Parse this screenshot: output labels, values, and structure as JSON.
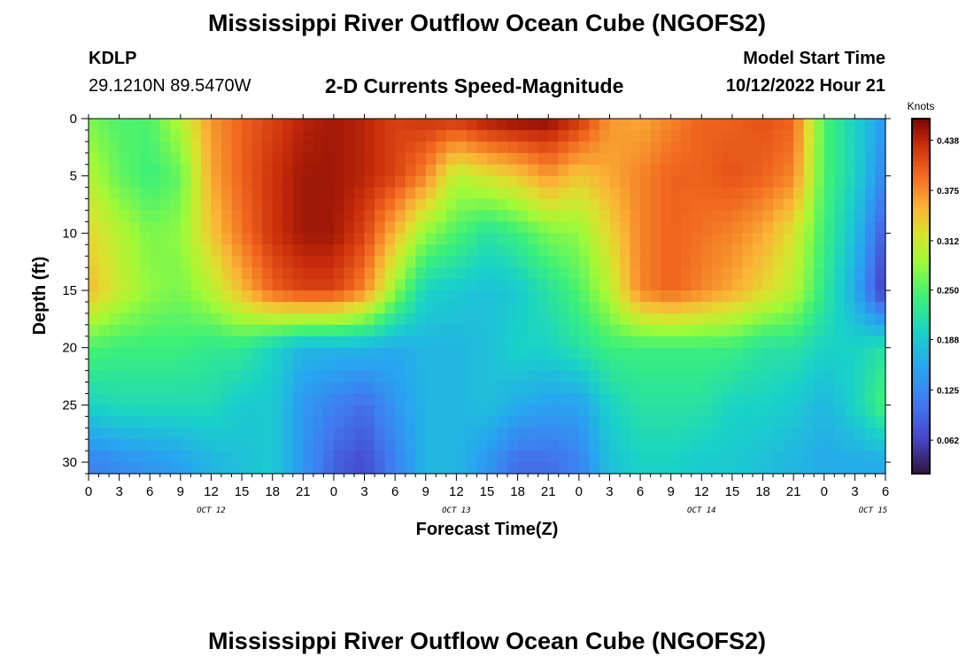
{
  "header": {
    "title": "Mississippi River Outflow Ocean Cube (NGOFS2)",
    "station": "KDLP",
    "coords": "29.1210N  89.5470W",
    "subtitle": "2-D Currents Speed-Magnitude",
    "model_start_label": "Model Start Time",
    "model_start_value": "10/12/2022 Hour 21"
  },
  "footer": {
    "title": "Mississippi River Outflow Ocean Cube (NGOFS2)"
  },
  "chart_data": {
    "type": "heatmap",
    "title": "2-D Currents Speed-Magnitude",
    "xlabel": "Forecast Time(Z)",
    "ylabel": "Depth (ft)",
    "x_tick_labels": [
      "0",
      "3",
      "6",
      "9",
      "12",
      "15",
      "18",
      "21",
      "0",
      "3",
      "6",
      "9",
      "12",
      "15",
      "18",
      "21",
      "0",
      "3",
      "6",
      "9",
      "12",
      "15",
      "18",
      "21",
      "0",
      "3",
      "6"
    ],
    "date_labels": [
      "OCT 12",
      "OCT 13",
      "OCT 14",
      "OCT 15"
    ],
    "x_range_hours": [
      0,
      78
    ],
    "y_tick_labels": [
      "0",
      "5",
      "10",
      "15",
      "20",
      "25",
      "30"
    ],
    "ylim": [
      0,
      31
    ],
    "y_inverted": true,
    "colorbar": {
      "title": "Knots",
      "ticks": [
        "0.438",
        "0.375",
        "0.312",
        "0.250",
        "0.188",
        "0.125",
        "0.062"
      ],
      "range": [
        0.02,
        0.465
      ]
    },
    "sample_times": [
      0,
      3,
      6,
      9,
      12,
      15,
      18,
      21,
      24,
      27,
      30,
      33,
      36,
      39,
      42,
      45,
      48,
      51,
      54,
      57,
      60,
      63,
      66,
      69,
      72,
      75,
      78
    ],
    "sample_depths": [
      0,
      5,
      10,
      15,
      20,
      25,
      30
    ],
    "values": [
      [
        0.27,
        0.25,
        0.25,
        0.3,
        0.37,
        0.4,
        0.42,
        0.44,
        0.45,
        0.44,
        0.42,
        0.43,
        0.43,
        0.45,
        0.46,
        0.46,
        0.43,
        0.37,
        0.36,
        0.38,
        0.4,
        0.4,
        0.41,
        0.4,
        0.25,
        0.2,
        0.14
      ],
      [
        0.3,
        0.26,
        0.24,
        0.26,
        0.36,
        0.4,
        0.43,
        0.45,
        0.45,
        0.44,
        0.42,
        0.38,
        0.3,
        0.32,
        0.34,
        0.37,
        0.34,
        0.36,
        0.38,
        0.4,
        0.4,
        0.41,
        0.4,
        0.38,
        0.25,
        0.2,
        0.12
      ],
      [
        0.33,
        0.3,
        0.27,
        0.28,
        0.34,
        0.39,
        0.43,
        0.45,
        0.45,
        0.42,
        0.35,
        0.28,
        0.25,
        0.22,
        0.24,
        0.27,
        0.28,
        0.33,
        0.38,
        0.4,
        0.39,
        0.38,
        0.36,
        0.32,
        0.24,
        0.18,
        0.08
      ],
      [
        0.35,
        0.31,
        0.28,
        0.27,
        0.3,
        0.35,
        0.4,
        0.42,
        0.42,
        0.38,
        0.28,
        0.2,
        0.19,
        0.18,
        0.19,
        0.22,
        0.25,
        0.3,
        0.38,
        0.4,
        0.38,
        0.36,
        0.33,
        0.3,
        0.23,
        0.16,
        0.05
      ],
      [
        0.25,
        0.24,
        0.24,
        0.24,
        0.23,
        0.23,
        0.2,
        0.17,
        0.17,
        0.17,
        0.16,
        0.17,
        0.17,
        0.18,
        0.2,
        0.2,
        0.22,
        0.24,
        0.24,
        0.24,
        0.24,
        0.24,
        0.22,
        0.22,
        0.2,
        0.2,
        0.22
      ],
      [
        0.2,
        0.21,
        0.21,
        0.21,
        0.21,
        0.19,
        0.19,
        0.14,
        0.12,
        0.1,
        0.14,
        0.17,
        0.17,
        0.18,
        0.16,
        0.15,
        0.15,
        0.2,
        0.22,
        0.22,
        0.22,
        0.2,
        0.2,
        0.19,
        0.17,
        0.2,
        0.25
      ],
      [
        0.12,
        0.13,
        0.14,
        0.15,
        0.17,
        0.18,
        0.19,
        0.14,
        0.09,
        0.07,
        0.12,
        0.17,
        0.17,
        0.14,
        0.1,
        0.1,
        0.12,
        0.18,
        0.2,
        0.2,
        0.19,
        0.19,
        0.18,
        0.17,
        0.16,
        0.16,
        0.16
      ]
    ]
  }
}
